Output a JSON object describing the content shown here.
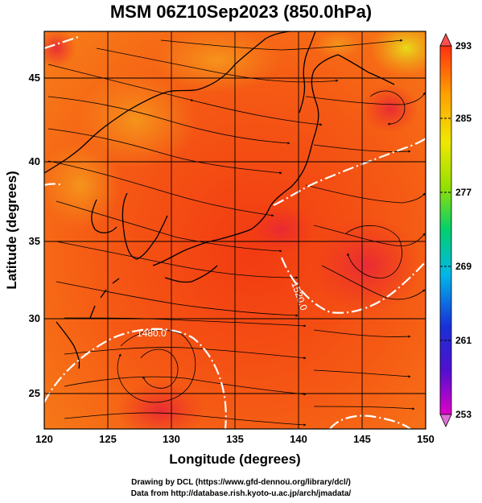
{
  "title": "MSM 06Z10Sep2023 (850.0hPa)",
  "axes": {
    "xlabel": "Longitude (degrees)",
    "ylabel": "Latitude  (degrees)",
    "x_ticks": [
      "120",
      "125",
      "130",
      "135",
      "140",
      "145",
      "150"
    ],
    "y_ticks": [
      "25",
      "30",
      "35",
      "40",
      "45"
    ],
    "xlim": [
      120,
      150
    ],
    "ylim": [
      22.4,
      47.6
    ]
  },
  "colorbar": {
    "labels": [
      "293",
      "285",
      "277",
      "269",
      "261",
      "253"
    ],
    "min": 253,
    "max": 293,
    "colors": [
      "#e000c8",
      "#1810c8",
      "#00b8e8",
      "#00d070",
      "#98e000",
      "#f0e800",
      "#ffa000",
      "#ff4010"
    ]
  },
  "contours": {
    "labels": [
      "1480.0",
      "1520.0"
    ],
    "color": "#ffffff"
  },
  "credits": {
    "line1": "Drawing by DCL (https://www.gfd-dennou.org/library/dcl/)",
    "line2": "Data from http://database.rish.kyoto-u.ac.jp/arch/jmadata/"
  }
}
